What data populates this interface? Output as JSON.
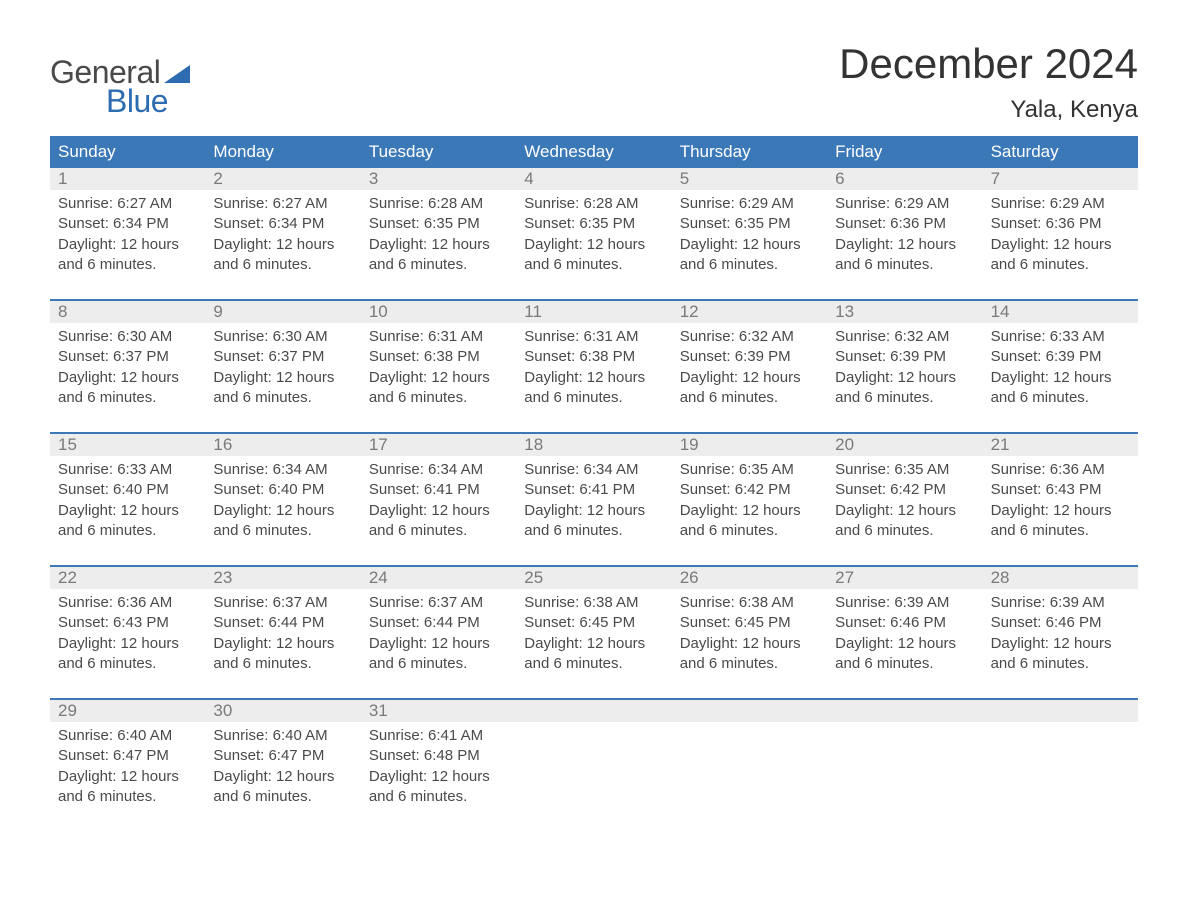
{
  "logo": {
    "general": "General",
    "blue": "Blue",
    "sail_color": "#2d6cb0"
  },
  "title": "December 2024",
  "location": "Yala, Kenya",
  "colors": {
    "header_bg": "#3b78b8",
    "header_text": "#ffffff",
    "daynum_bg": "#ededed",
    "daynum_text": "#7a7a7a",
    "body_text": "#4a4a4a",
    "separator": "#3b78b8",
    "logo_gray": "#4a4a4a",
    "logo_blue": "#2d6cb0"
  },
  "day_headers": [
    "Sunday",
    "Monday",
    "Tuesday",
    "Wednesday",
    "Thursday",
    "Friday",
    "Saturday"
  ],
  "weeks": [
    [
      {
        "n": "1",
        "sr": "6:27 AM",
        "ss": "6:34 PM",
        "dl": "12 hours and 6 minutes."
      },
      {
        "n": "2",
        "sr": "6:27 AM",
        "ss": "6:34 PM",
        "dl": "12 hours and 6 minutes."
      },
      {
        "n": "3",
        "sr": "6:28 AM",
        "ss": "6:35 PM",
        "dl": "12 hours and 6 minutes."
      },
      {
        "n": "4",
        "sr": "6:28 AM",
        "ss": "6:35 PM",
        "dl": "12 hours and 6 minutes."
      },
      {
        "n": "5",
        "sr": "6:29 AM",
        "ss": "6:35 PM",
        "dl": "12 hours and 6 minutes."
      },
      {
        "n": "6",
        "sr": "6:29 AM",
        "ss": "6:36 PM",
        "dl": "12 hours and 6 minutes."
      },
      {
        "n": "7",
        "sr": "6:29 AM",
        "ss": "6:36 PM",
        "dl": "12 hours and 6 minutes."
      }
    ],
    [
      {
        "n": "8",
        "sr": "6:30 AM",
        "ss": "6:37 PM",
        "dl": "12 hours and 6 minutes."
      },
      {
        "n": "9",
        "sr": "6:30 AM",
        "ss": "6:37 PM",
        "dl": "12 hours and 6 minutes."
      },
      {
        "n": "10",
        "sr": "6:31 AM",
        "ss": "6:38 PM",
        "dl": "12 hours and 6 minutes."
      },
      {
        "n": "11",
        "sr": "6:31 AM",
        "ss": "6:38 PM",
        "dl": "12 hours and 6 minutes."
      },
      {
        "n": "12",
        "sr": "6:32 AM",
        "ss": "6:39 PM",
        "dl": "12 hours and 6 minutes."
      },
      {
        "n": "13",
        "sr": "6:32 AM",
        "ss": "6:39 PM",
        "dl": "12 hours and 6 minutes."
      },
      {
        "n": "14",
        "sr": "6:33 AM",
        "ss": "6:39 PM",
        "dl": "12 hours and 6 minutes."
      }
    ],
    [
      {
        "n": "15",
        "sr": "6:33 AM",
        "ss": "6:40 PM",
        "dl": "12 hours and 6 minutes."
      },
      {
        "n": "16",
        "sr": "6:34 AM",
        "ss": "6:40 PM",
        "dl": "12 hours and 6 minutes."
      },
      {
        "n": "17",
        "sr": "6:34 AM",
        "ss": "6:41 PM",
        "dl": "12 hours and 6 minutes."
      },
      {
        "n": "18",
        "sr": "6:34 AM",
        "ss": "6:41 PM",
        "dl": "12 hours and 6 minutes."
      },
      {
        "n": "19",
        "sr": "6:35 AM",
        "ss": "6:42 PM",
        "dl": "12 hours and 6 minutes."
      },
      {
        "n": "20",
        "sr": "6:35 AM",
        "ss": "6:42 PM",
        "dl": "12 hours and 6 minutes."
      },
      {
        "n": "21",
        "sr": "6:36 AM",
        "ss": "6:43 PM",
        "dl": "12 hours and 6 minutes."
      }
    ],
    [
      {
        "n": "22",
        "sr": "6:36 AM",
        "ss": "6:43 PM",
        "dl": "12 hours and 6 minutes."
      },
      {
        "n": "23",
        "sr": "6:37 AM",
        "ss": "6:44 PM",
        "dl": "12 hours and 6 minutes."
      },
      {
        "n": "24",
        "sr": "6:37 AM",
        "ss": "6:44 PM",
        "dl": "12 hours and 6 minutes."
      },
      {
        "n": "25",
        "sr": "6:38 AM",
        "ss": "6:45 PM",
        "dl": "12 hours and 6 minutes."
      },
      {
        "n": "26",
        "sr": "6:38 AM",
        "ss": "6:45 PM",
        "dl": "12 hours and 6 minutes."
      },
      {
        "n": "27",
        "sr": "6:39 AM",
        "ss": "6:46 PM",
        "dl": "12 hours and 6 minutes."
      },
      {
        "n": "28",
        "sr": "6:39 AM",
        "ss": "6:46 PM",
        "dl": "12 hours and 6 minutes."
      }
    ],
    [
      {
        "n": "29",
        "sr": "6:40 AM",
        "ss": "6:47 PM",
        "dl": "12 hours and 6 minutes."
      },
      {
        "n": "30",
        "sr": "6:40 AM",
        "ss": "6:47 PM",
        "dl": "12 hours and 6 minutes."
      },
      {
        "n": "31",
        "sr": "6:41 AM",
        "ss": "6:48 PM",
        "dl": "12 hours and 6 minutes."
      },
      null,
      null,
      null,
      null
    ]
  ],
  "labels": {
    "sunrise": "Sunrise: ",
    "sunset": "Sunset: ",
    "daylight": "Daylight: "
  }
}
